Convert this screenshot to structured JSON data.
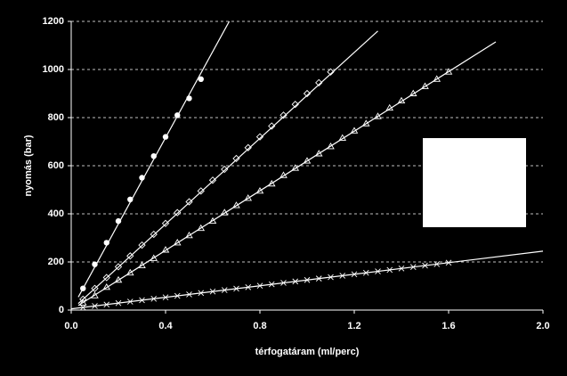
{
  "chart_data": {
    "type": "scatter",
    "xlabel": "térfogatáram (ml/perc)",
    "ylabel": "nyomás (bar)",
    "xlim": [
      0,
      2.0
    ],
    "xticks": [
      {
        "value": 0,
        "label": "0.0"
      },
      {
        "value": 0.4,
        "label": "0.4"
      },
      {
        "value": 0.8,
        "label": "0.8"
      },
      {
        "value": 1.2,
        "label": "1.2"
      },
      {
        "value": 1.6,
        "label": "1.6"
      },
      {
        "value": 2.0,
        "label": "2.0"
      }
    ],
    "ylim": [
      0,
      1200
    ],
    "yticks": [
      0,
      200,
      400,
      600,
      800,
      1000,
      1200
    ],
    "grid": true,
    "series": [
      {
        "marker": "circle",
        "color": "#ffffff",
        "x": [
          0.05,
          0.1,
          0.15,
          0.2,
          0.25,
          0.3,
          0.35,
          0.4,
          0.45,
          0.5,
          0.55
        ],
        "values": [
          90,
          190,
          280,
          370,
          460,
          550,
          640,
          720,
          810,
          880,
          960
        ],
        "line_x": [
          0.03,
          0.67
        ],
        "line_y": [
          54,
          1200
        ]
      },
      {
        "marker": "diamond",
        "color": "#ffffff",
        "x": [
          0.05,
          0.1,
          0.15,
          0.2,
          0.25,
          0.3,
          0.35,
          0.4,
          0.45,
          0.5,
          0.55,
          0.6,
          0.65,
          0.7,
          0.75,
          0.8,
          0.85,
          0.9,
          0.95,
          1.0,
          1.05,
          1.1
        ],
        "values": [
          45,
          90,
          135,
          180,
          225,
          270,
          315,
          360,
          405,
          450,
          495,
          540,
          585,
          630,
          675,
          720,
          765,
          810,
          855,
          900,
          945,
          990
        ],
        "line_x": [
          0.03,
          1.3
        ],
        "line_y": [
          27,
          1160
        ]
      },
      {
        "marker": "triangle",
        "color": "#ffffff",
        "x": [
          0.05,
          0.1,
          0.15,
          0.2,
          0.25,
          0.3,
          0.35,
          0.4,
          0.45,
          0.5,
          0.55,
          0.6,
          0.65,
          0.7,
          0.75,
          0.8,
          0.85,
          0.9,
          0.95,
          1.0,
          1.05,
          1.1,
          1.15,
          1.2,
          1.25,
          1.3,
          1.35,
          1.4,
          1.45,
          1.5,
          1.55,
          1.6
        ],
        "values": [
          30,
          60,
          95,
          125,
          155,
          185,
          215,
          250,
          280,
          310,
          340,
          370,
          405,
          435,
          465,
          495,
          525,
          560,
          590,
          620,
          650,
          680,
          715,
          745,
          775,
          805,
          840,
          870,
          900,
          930,
          960,
          990
        ],
        "line_x": [
          0.03,
          1.8
        ],
        "line_y": [
          19,
          1115
        ]
      },
      {
        "marker": "cross",
        "color": "#ffffff",
        "x": [
          0.05,
          0.1,
          0.15,
          0.2,
          0.25,
          0.3,
          0.35,
          0.4,
          0.45,
          0.5,
          0.55,
          0.6,
          0.65,
          0.7,
          0.75,
          0.8,
          0.85,
          0.9,
          0.95,
          1.0,
          1.05,
          1.1,
          1.15,
          1.2,
          1.25,
          1.3,
          1.35,
          1.4,
          1.45,
          1.5,
          1.55,
          1.6
        ],
        "values": [
          11,
          17,
          23,
          29,
          35,
          41,
          47,
          53,
          59,
          65,
          71,
          77,
          83,
          89,
          95,
          101,
          107,
          113,
          119,
          125,
          131,
          137,
          143,
          149,
          155,
          161,
          167,
          173,
          179,
          185,
          191,
          197
        ],
        "line_x": [
          0,
          2.0
        ],
        "line_y": [
          5,
          245
        ]
      }
    ]
  }
}
